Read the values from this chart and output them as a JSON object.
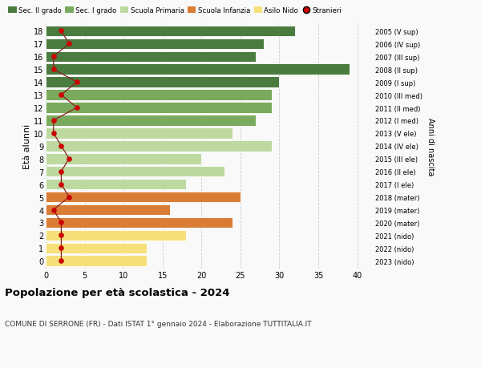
{
  "ages": [
    18,
    17,
    16,
    15,
    14,
    13,
    12,
    11,
    10,
    9,
    8,
    7,
    6,
    5,
    4,
    3,
    2,
    1,
    0
  ],
  "bar_values": [
    32,
    28,
    27,
    39,
    30,
    29,
    29,
    27,
    24,
    29,
    20,
    23,
    18,
    25,
    16,
    24,
    18,
    13,
    13
  ],
  "bar_colors": [
    "#4a7c3f",
    "#4a7c3f",
    "#4a7c3f",
    "#4a7c3f",
    "#4a7c3f",
    "#7aaa5e",
    "#7aaa5e",
    "#7aaa5e",
    "#bdd9a0",
    "#bdd9a0",
    "#bdd9a0",
    "#bdd9a0",
    "#bdd9a0",
    "#d97c35",
    "#d97c35",
    "#d97c35",
    "#f5e07a",
    "#f5e07a",
    "#f5e07a"
  ],
  "stranieri_values": [
    2,
    3,
    1,
    1,
    4,
    2,
    4,
    1,
    1,
    2,
    3,
    2,
    2,
    3,
    1,
    2,
    2,
    2,
    2
  ],
  "right_labels": [
    "2005 (V sup)",
    "2006 (IV sup)",
    "2007 (III sup)",
    "2008 (II sup)",
    "2009 (I sup)",
    "2010 (III med)",
    "2011 (II med)",
    "2012 (I med)",
    "2013 (V ele)",
    "2014 (IV ele)",
    "2015 (III ele)",
    "2016 (II ele)",
    "2017 (I ele)",
    "2018 (mater)",
    "2019 (mater)",
    "2020 (mater)",
    "2021 (nido)",
    "2022 (nido)",
    "2023 (nido)"
  ],
  "legend_labels": [
    "Sec. II grado",
    "Sec. I grado",
    "Scuola Primaria",
    "Scuola Infanzia",
    "Asilo Nido",
    "Stranieri"
  ],
  "legend_colors": [
    "#4a7c3f",
    "#7aaa5e",
    "#bdd9a0",
    "#d97c35",
    "#f5e07a",
    "#cc0000"
  ],
  "ylabel": "Età alunni",
  "right_ylabel": "Anni di nascita",
  "title": "Popolazione per età scolastica - 2024",
  "subtitle": "COMUNE DI SERRONE (FR) - Dati ISTAT 1° gennaio 2024 - Elaborazione TUTTITALIA.IT",
  "xlim": [
    0,
    42
  ],
  "bar_height": 0.85,
  "grid_color": "#cccccc",
  "bg_color": "#f9f9f9",
  "bar_edge_color": "white",
  "stranieri_line_color": "#8b2020",
  "stranieri_dot_color": "#cc0000"
}
